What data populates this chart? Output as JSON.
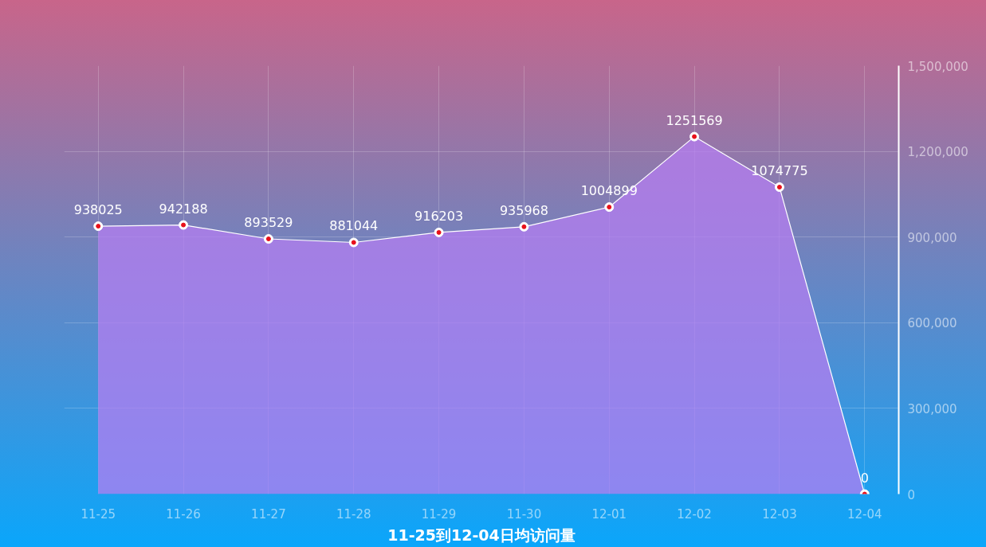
{
  "chart_data": {
    "type": "area",
    "title": "11-25到12-04日均访问量",
    "categories": [
      "11-25",
      "11-26",
      "11-27",
      "11-28",
      "11-29",
      "11-30",
      "12-01",
      "12-02",
      "12-03",
      "12-04"
    ],
    "series": [
      {
        "color": "#b47ef0",
        "values": [
          938025,
          942188,
          893529,
          881044,
          916203,
          935968,
          1004899,
          1251569,
          1074775,
          0
        ]
      }
    ],
    "ylim": [
      0,
      1500000
    ],
    "yticks": [
      0,
      {
        "value": 300000,
        "label": "300,000"
      },
      {
        "value": 600000,
        "label": "600,000"
      },
      {
        "value": 900000,
        "label": "900,000"
      },
      {
        "value": 1200000,
        "label": "1,200,000"
      },
      {
        "value": 1500000,
        "label": "1,500,000"
      }
    ],
    "grid": true,
    "marker": "circle",
    "data_labels": true
  }
}
